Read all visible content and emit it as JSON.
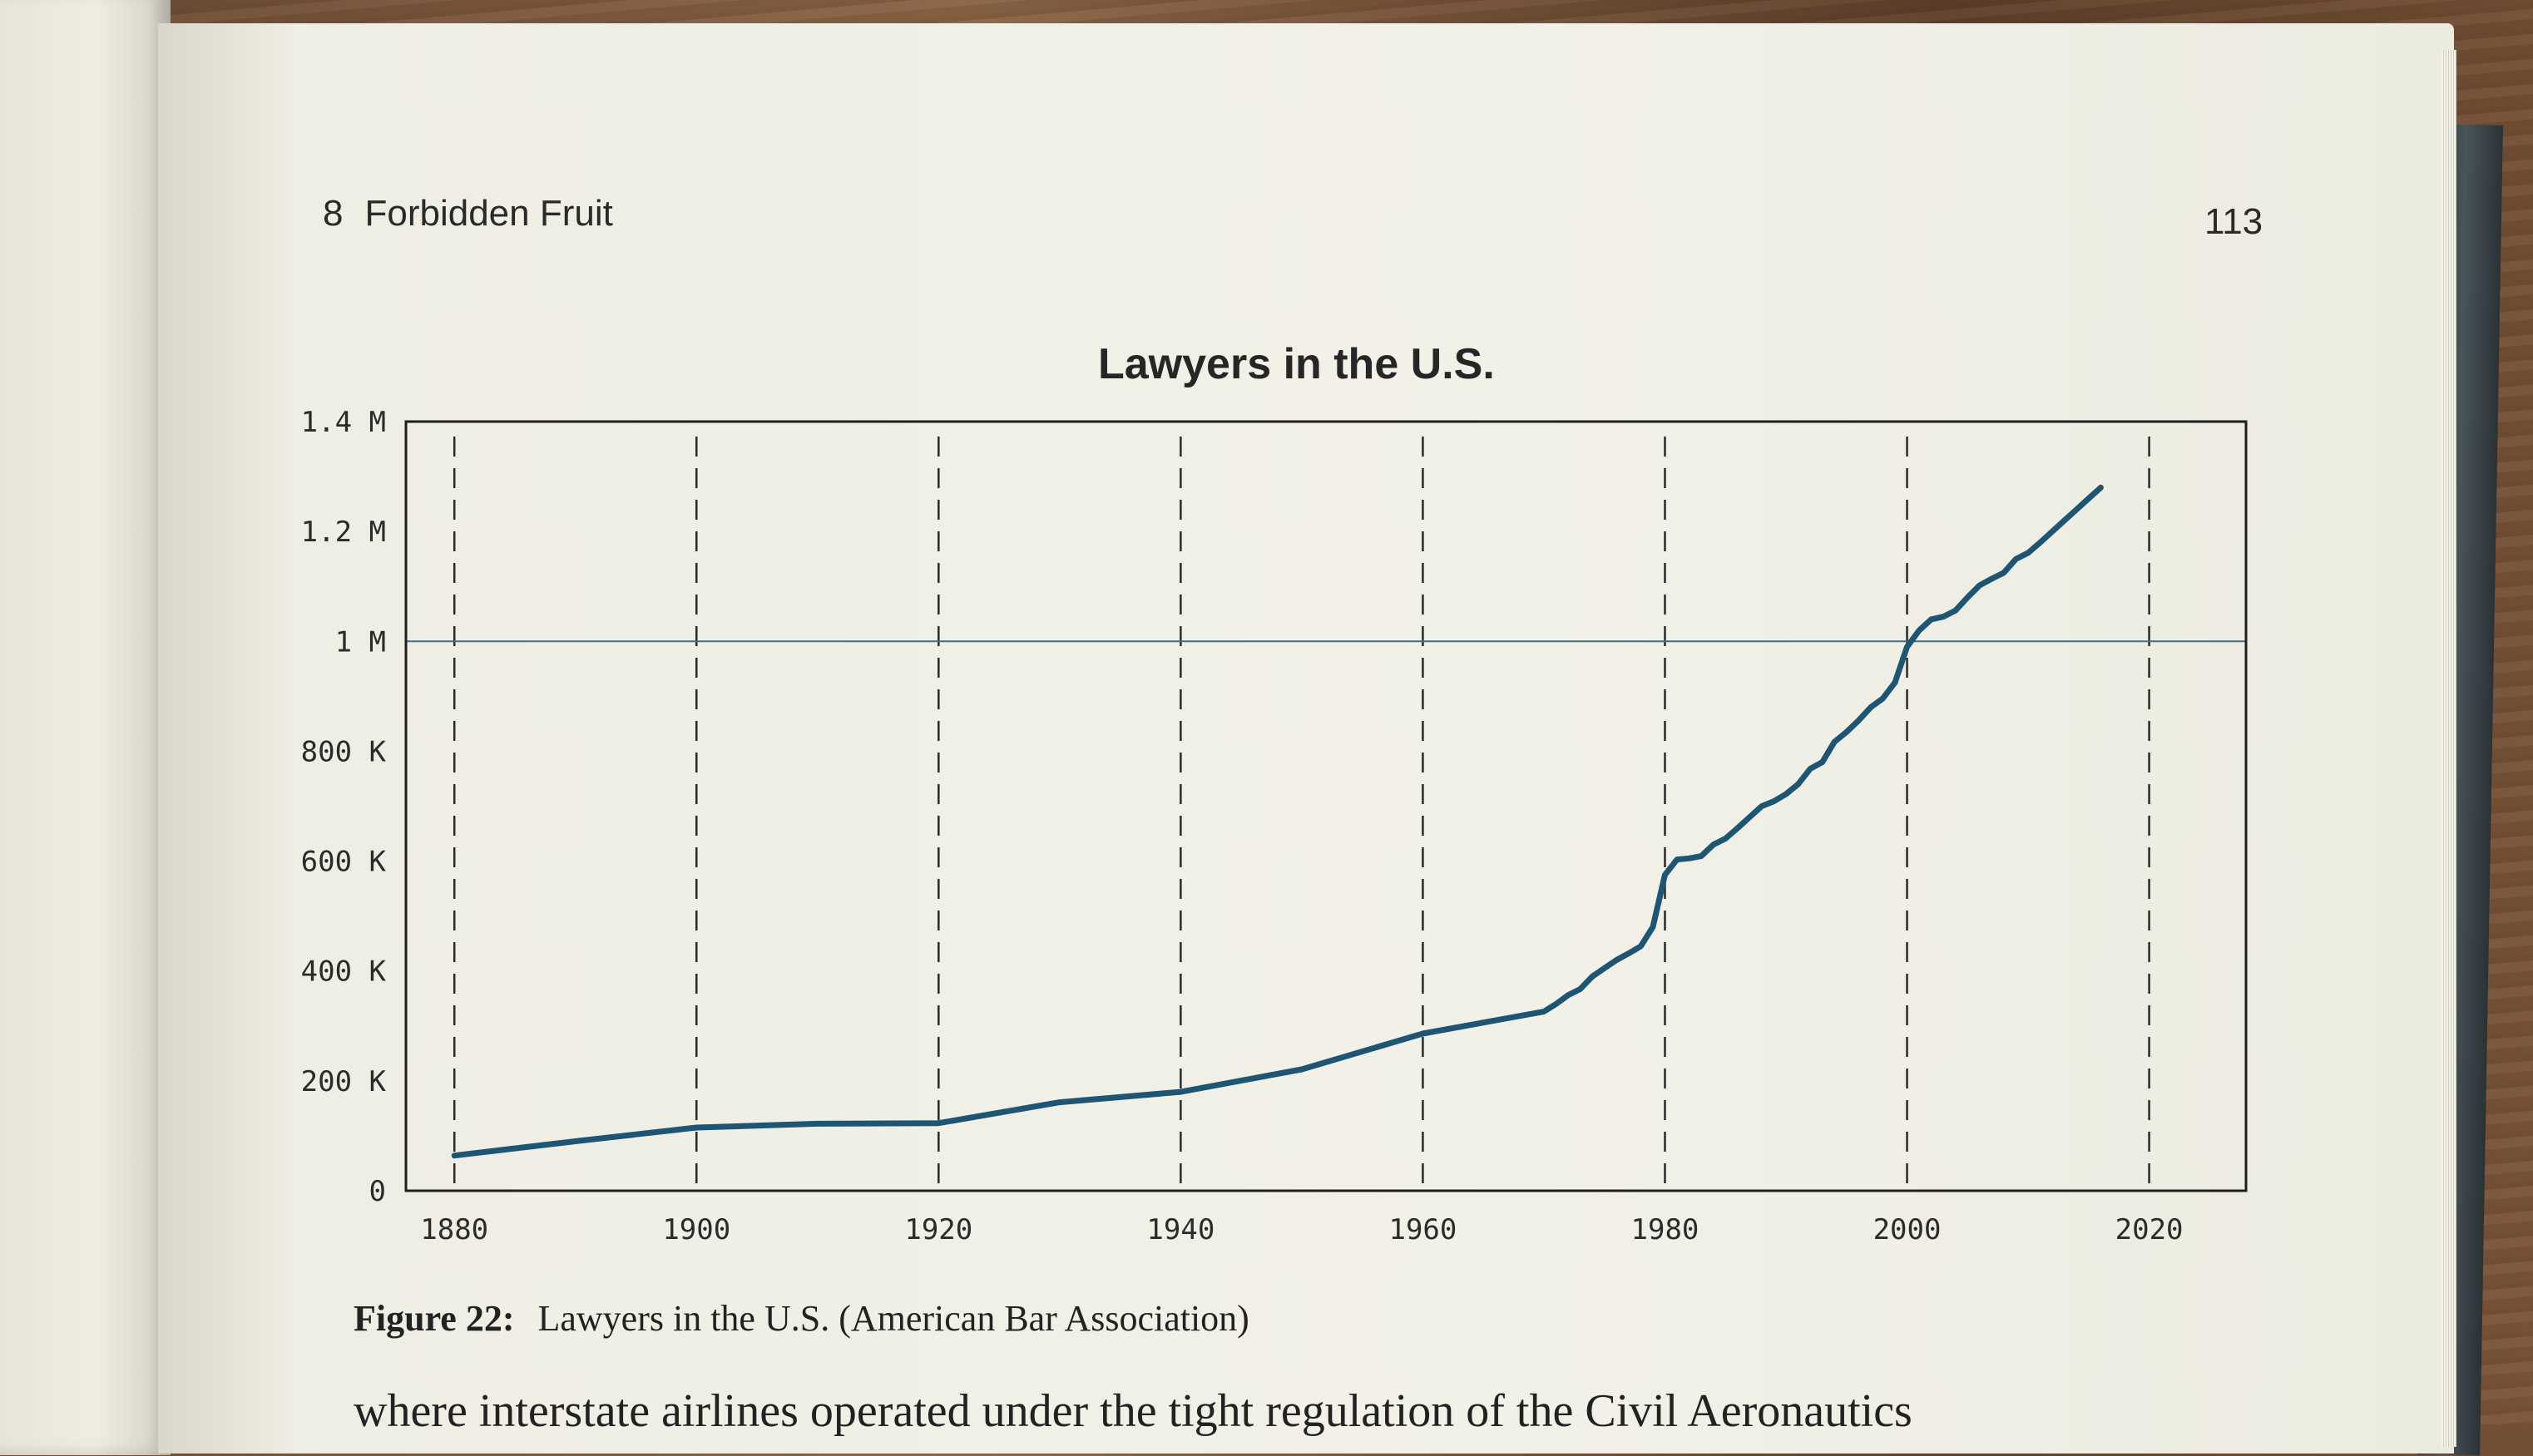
{
  "running_head": {
    "chapter_number": "8",
    "chapter_title": "Forbidden Fruit"
  },
  "page_number": "113",
  "caption": {
    "label": "Figure 22:",
    "text": "Lawyers in the U.S. (American Bar Association)"
  },
  "body_text_line": "where interstate airlines operated under the tight regulation of the Civil Aeronautics",
  "colors": {
    "line": "#1d5573",
    "frame": "#1f1f1f",
    "grid": "#2a2a2a",
    "reference": "#3f6d86"
  },
  "chart_data": {
    "type": "line",
    "title": "Lawyers in the U.S.",
    "xlabel": "",
    "ylabel": "",
    "xlim": [
      1876,
      2028
    ],
    "ylim": [
      0,
      1400000
    ],
    "x_ticks": [
      1880,
      1900,
      1920,
      1940,
      1960,
      1980,
      2000,
      2020
    ],
    "x_tick_labels": [
      "1880",
      "1900",
      "1920",
      "1940",
      "1960",
      "1980",
      "2000",
      "2020"
    ],
    "y_ticks": [
      0,
      200000,
      400000,
      600000,
      800000,
      1000000,
      1200000,
      1400000
    ],
    "y_tick_labels": [
      "0",
      "200 K",
      "400 K",
      "600 K",
      "800 K",
      "1 M",
      "1.2 M",
      "1.4 M"
    ],
    "grid": {
      "vertical": "dashed",
      "horizontal_reference_at": 1000000
    },
    "legend": "none",
    "series": [
      {
        "x": [
          1880,
          1890,
          1900,
          1910,
          1920,
          1930,
          1940,
          1950,
          1960,
          1970,
          1971,
          1972,
          1973,
          1974,
          1975,
          1976,
          1977,
          1978,
          1979,
          1980,
          1981,
          1982,
          1983,
          1984,
          1985,
          1986,
          1987,
          1988,
          1989,
          1990,
          1991,
          1992,
          1993,
          1994,
          1995,
          1996,
          1997,
          1998,
          1999,
          2000,
          2001,
          2002,
          2003,
          2004,
          2005,
          2006,
          2007,
          2008,
          2009,
          2010,
          2011,
          2012,
          2013,
          2014,
          2015,
          2016
        ],
        "y": [
          64000,
          90000,
          115000,
          122000,
          123000,
          161000,
          180000,
          221000,
          286000,
          326000,
          340000,
          356000,
          367000,
          390000,
          405000,
          420000,
          432000,
          445000,
          480000,
          575000,
          603000,
          605000,
          609000,
          630000,
          641000,
          660000,
          680000,
          700000,
          709000,
          722000,
          740000,
          768000,
          780000,
          817000,
          835000,
          856000,
          880000,
          896000,
          925000,
          990000,
          1020000,
          1040000,
          1045000,
          1056000,
          1080000,
          1102000,
          1114000,
          1125000,
          1150000,
          1161000,
          1180000,
          1200000,
          1220000,
          1240000,
          1260000,
          1280000
        ]
      }
    ]
  }
}
